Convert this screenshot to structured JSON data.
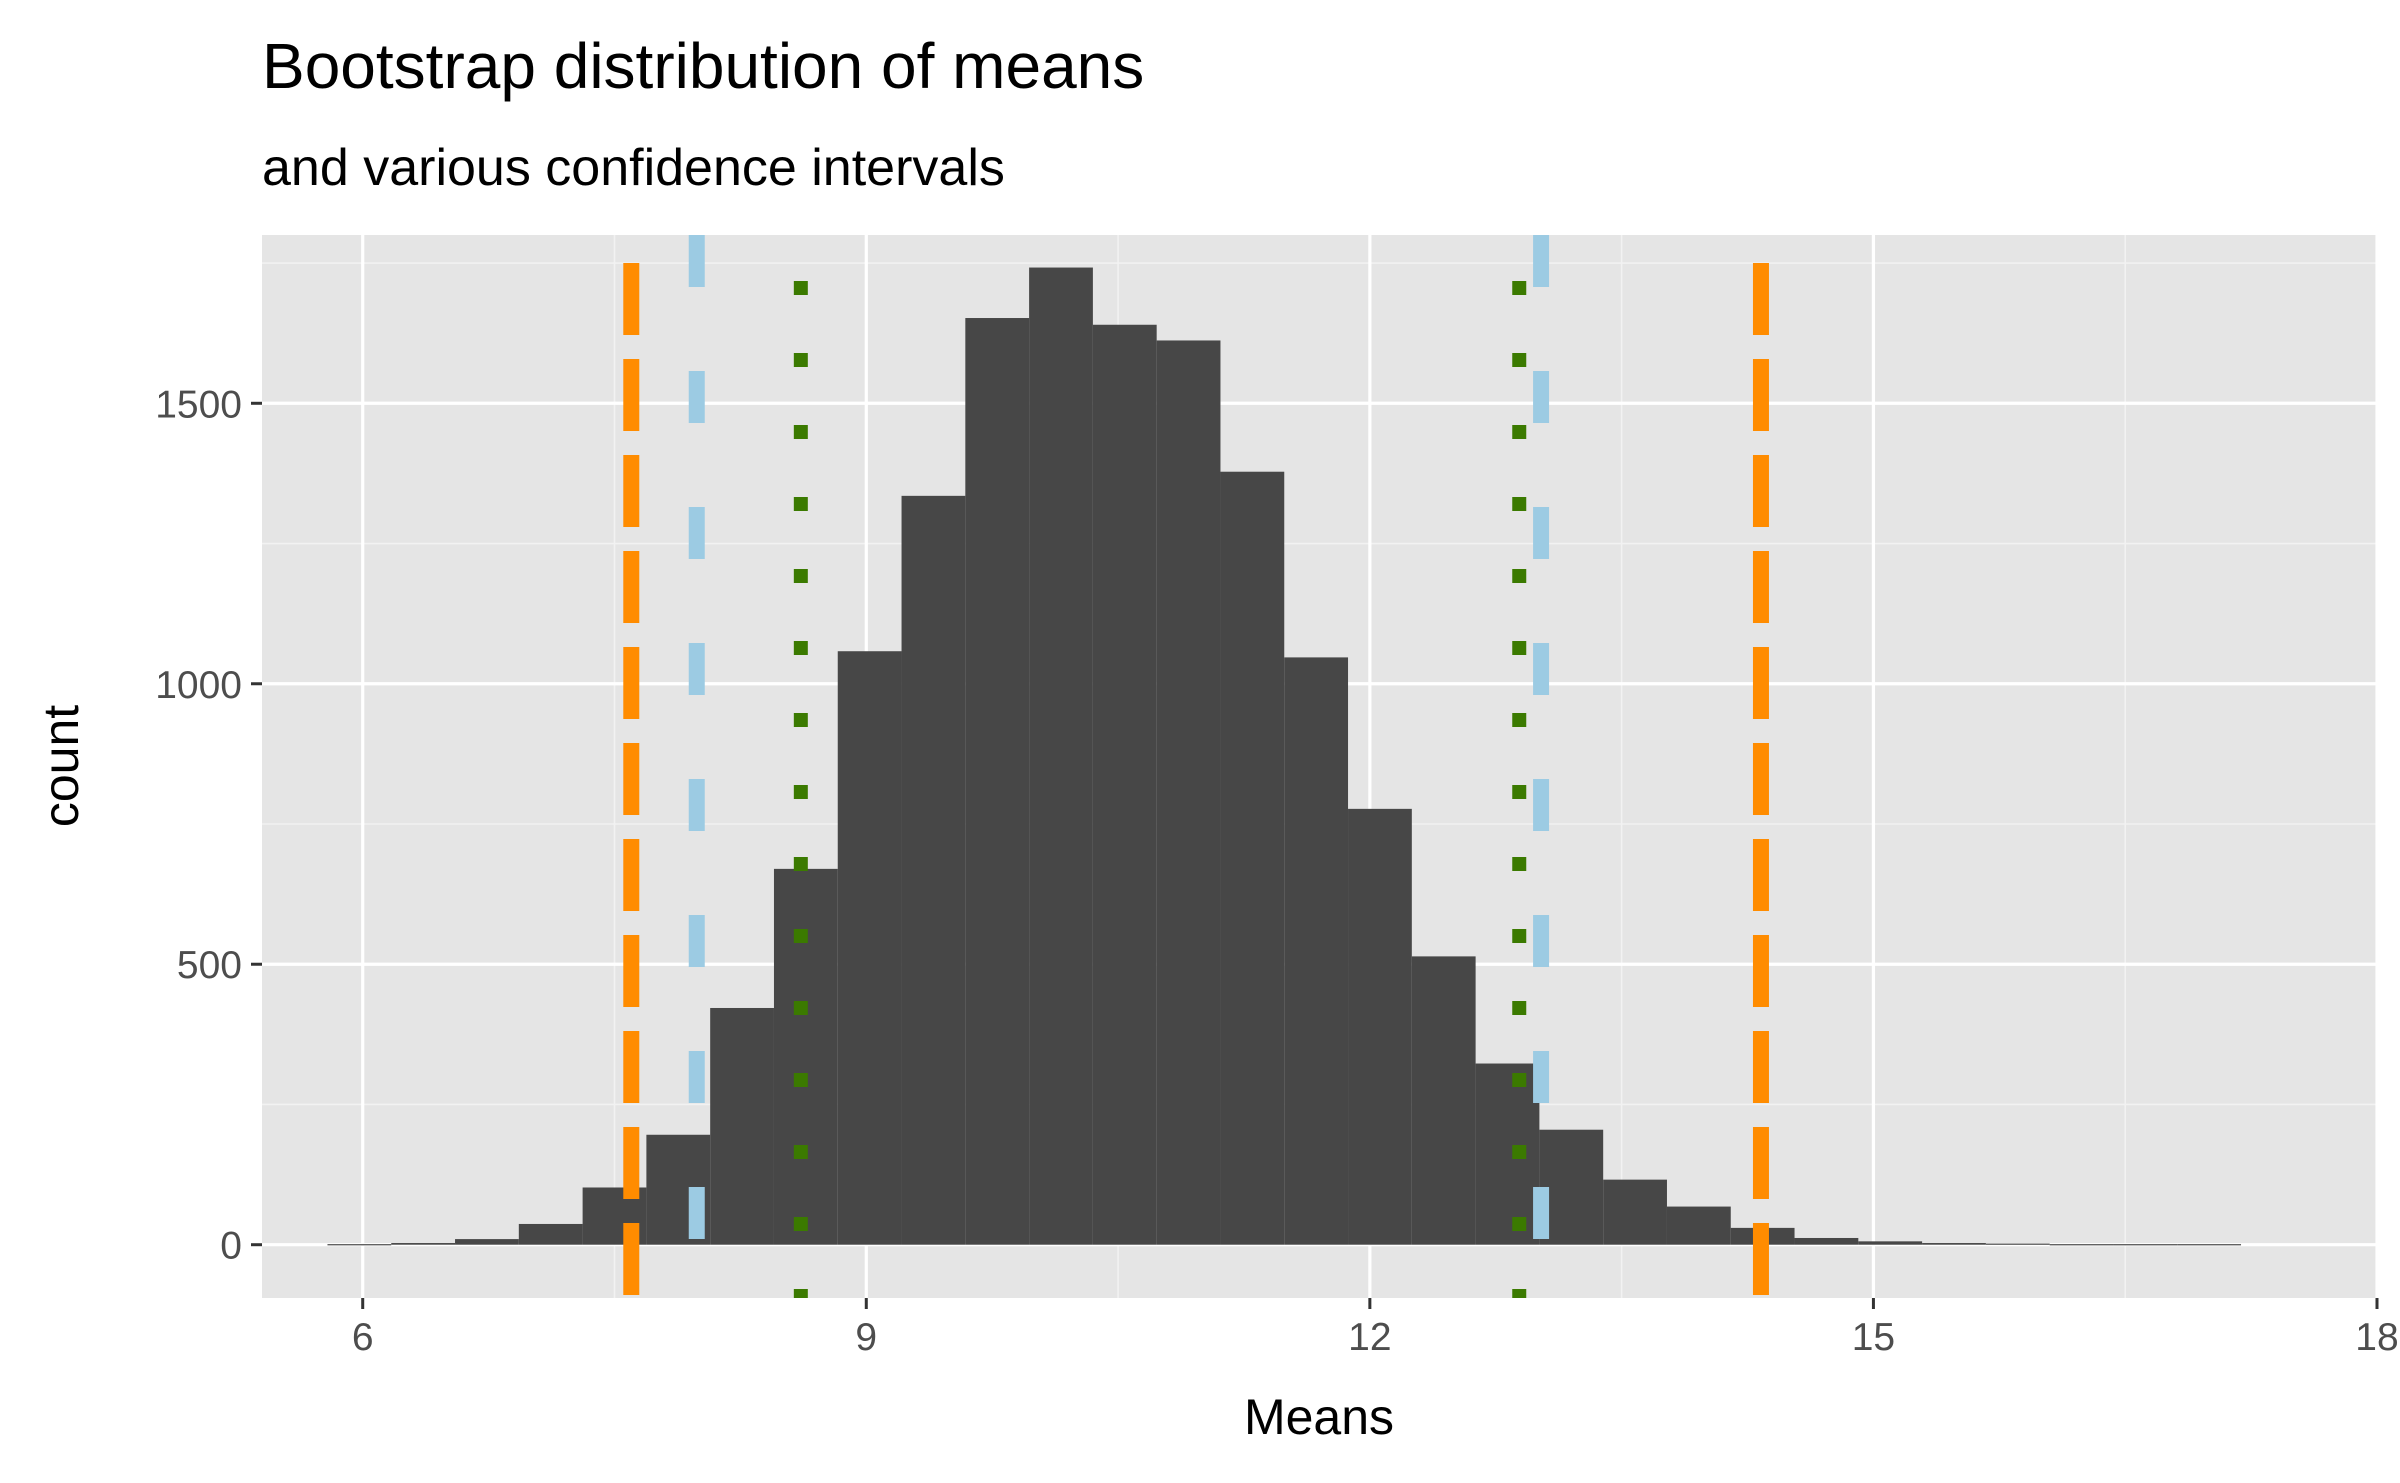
{
  "chart_data": {
    "type": "bar",
    "title": "Bootstrap distribution of means",
    "subtitle": "and various confidence intervals",
    "xlabel": "Means",
    "ylabel": "count",
    "xlim": [
      5.4,
      18.0
    ],
    "ylim": [
      -95,
      1800
    ],
    "x_ticks": [
      6,
      9,
      12,
      15,
      18
    ],
    "x_tick_labels": [
      "6",
      "9",
      "12",
      "15",
      "18"
    ],
    "y_ticks": [
      0,
      500,
      1000,
      1500
    ],
    "y_tick_labels": [
      "0",
      "500",
      "1000",
      "1500"
    ],
    "bin_width": 0.38,
    "bins": [
      {
        "x": 5.98,
        "count": 1
      },
      {
        "x": 6.36,
        "count": 3
      },
      {
        "x": 6.74,
        "count": 10
      },
      {
        "x": 7.12,
        "count": 37
      },
      {
        "x": 7.5,
        "count": 102
      },
      {
        "x": 7.88,
        "count": 196
      },
      {
        "x": 8.26,
        "count": 422
      },
      {
        "x": 8.64,
        "count": 670
      },
      {
        "x": 9.02,
        "count": 1058
      },
      {
        "x": 9.4,
        "count": 1335
      },
      {
        "x": 9.78,
        "count": 1652
      },
      {
        "x": 10.16,
        "count": 1742
      },
      {
        "x": 10.54,
        "count": 1640
      },
      {
        "x": 10.92,
        "count": 1612
      },
      {
        "x": 11.3,
        "count": 1378
      },
      {
        "x": 11.68,
        "count": 1047
      },
      {
        "x": 12.06,
        "count": 777
      },
      {
        "x": 12.44,
        "count": 514
      },
      {
        "x": 12.82,
        "count": 323
      },
      {
        "x": 13.2,
        "count": 205
      },
      {
        "x": 13.58,
        "count": 116
      },
      {
        "x": 13.96,
        "count": 68
      },
      {
        "x": 14.34,
        "count": 30
      },
      {
        "x": 14.72,
        "count": 12
      },
      {
        "x": 15.1,
        "count": 6
      },
      {
        "x": 15.48,
        "count": 3
      },
      {
        "x": 15.86,
        "count": 2
      },
      {
        "x": 16.24,
        "count": 1
      },
      {
        "x": 16.62,
        "count": 1
      },
      {
        "x": 17.0,
        "count": 1
      }
    ],
    "vlines": [
      {
        "x": 7.6,
        "color": "#ff8c00",
        "style": "longdash"
      },
      {
        "x": 14.33,
        "color": "#ff8c00",
        "style": "longdash"
      },
      {
        "x": 7.99,
        "color": "#9ccbe3",
        "style": "dashed"
      },
      {
        "x": 13.02,
        "color": "#9ccbe3",
        "style": "dashed"
      },
      {
        "x": 8.61,
        "color": "#3b7a00",
        "style": "dotted"
      },
      {
        "x": 12.89,
        "color": "#3b7a00",
        "style": "dotted"
      }
    ],
    "colors": {
      "bar_fill": "#474747",
      "panel_bg": "#e5e5e5",
      "grid_major": "#ffffff",
      "grid_minor": "#f2f2f2",
      "tick_text": "#4d4d4d"
    },
    "grid": true
  }
}
